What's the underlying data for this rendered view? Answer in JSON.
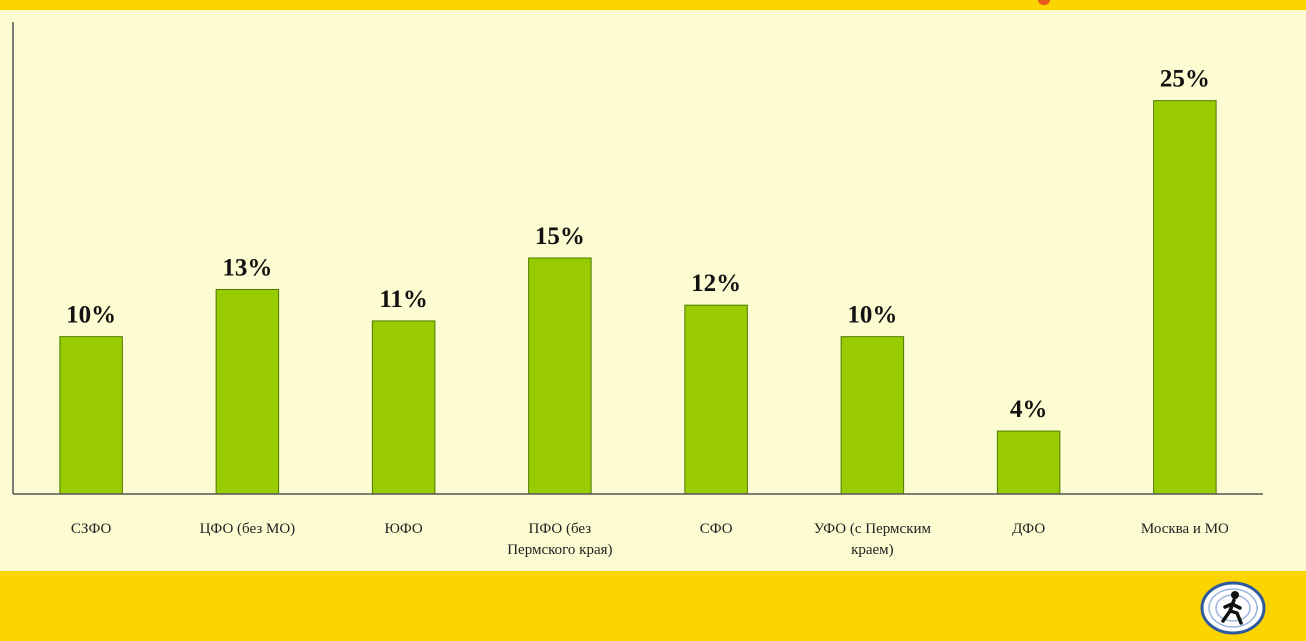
{
  "colors": {
    "background": "#fdfbd1",
    "band": "#fcd500",
    "bar_fill": "#99cc00",
    "bar_stroke": "#4d7a00",
    "axis": "#555555",
    "logo_ring": "#2d5a9e"
  },
  "logo": {
    "icon": "person-walking-icon"
  },
  "chart_data": {
    "type": "bar",
    "title": "",
    "xlabel": "",
    "ylabel": "",
    "ylim": [
      0,
      30
    ],
    "grid": false,
    "legend": "none",
    "categories": [
      [
        "СЗФО"
      ],
      [
        "ЦФО (без МО)"
      ],
      [
        "ЮФО"
      ],
      [
        "ПФО (без",
        "Пермского края)"
      ],
      [
        "СФО"
      ],
      [
        "УФО (с Пермским",
        "краем)"
      ],
      [
        "ДФО"
      ],
      [
        "Москва и МО"
      ]
    ],
    "values": [
      10,
      13,
      11,
      15,
      12,
      10,
      4,
      25
    ],
    "data_labels": [
      "10%",
      "13%",
      "11%",
      "15%",
      "12%",
      "10%",
      "4%",
      "25%"
    ]
  }
}
